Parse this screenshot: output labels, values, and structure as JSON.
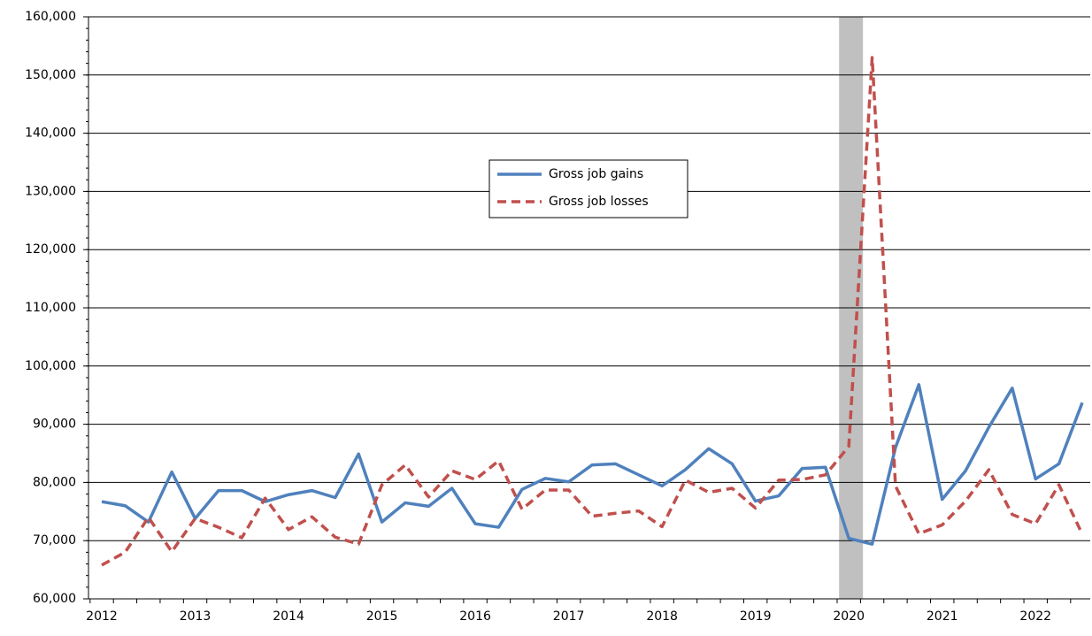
{
  "chart_data": {
    "type": "line",
    "categories": [
      "2012",
      null,
      null,
      null,
      "2013",
      null,
      null,
      null,
      "2014",
      null,
      null,
      null,
      "2015",
      null,
      null,
      null,
      "2016",
      null,
      null,
      null,
      "2017",
      null,
      null,
      null,
      "2018",
      null,
      null,
      null,
      "2019",
      null,
      null,
      null,
      "2020",
      null,
      null,
      null,
      "2021",
      null,
      null,
      null,
      "2022",
      null,
      null
    ],
    "series": [
      {
        "name": "Gross job gains",
        "color": "#4f81bd",
        "dash": false,
        "values": [
          76700,
          76000,
          73200,
          81800,
          73800,
          78600,
          78600,
          76700,
          77900,
          78600,
          77400,
          84900,
          73200,
          76500,
          75900,
          79000,
          72900,
          72300,
          78800,
          80700,
          80100,
          83000,
          83200,
          81300,
          79400,
          82200,
          85800,
          83200,
          76800,
          77700,
          82400,
          82600,
          70400,
          69400,
          86000,
          96800,
          77100,
          82000,
          89500,
          96200,
          80600,
          83200,
          93700
        ]
      },
      {
        "name": "Gross job losses",
        "color": "#c0504d",
        "dash": true,
        "values": [
          65800,
          68000,
          74000,
          68100,
          73800,
          72300,
          70500,
          77300,
          71900,
          74100,
          70600,
          69400,
          79600,
          83000,
          77500,
          82000,
          80500,
          83700,
          75400,
          78700,
          78700,
          74200,
          74700,
          75100,
          72400,
          80400,
          78300,
          79000,
          75600,
          80400,
          80500,
          81300,
          86200,
          153000,
          79400,
          71200,
          72700,
          76800,
          82200,
          74500,
          72900,
          79600,
          71100
        ]
      }
    ],
    "ylim": [
      60000,
      160000
    ],
    "yticks": [
      {
        "value": 60000,
        "label": "60,000"
      },
      {
        "value": 70000,
        "label": "70,000"
      },
      {
        "value": 80000,
        "label": "80,000"
      },
      {
        "value": 90000,
        "label": "90,000"
      },
      {
        "value": 100000,
        "label": "100,000"
      },
      {
        "value": 110000,
        "label": "110,000"
      },
      {
        "value": 120000,
        "label": "120,000"
      },
      {
        "value": 130000,
        "label": "130,000"
      },
      {
        "value": 140000,
        "label": "140,000"
      },
      {
        "value": 150000,
        "label": "150,000"
      },
      {
        "value": 160000,
        "label": "160,000"
      }
    ],
    "grid": true,
    "shade_categories": [
      "2020"
    ]
  }
}
